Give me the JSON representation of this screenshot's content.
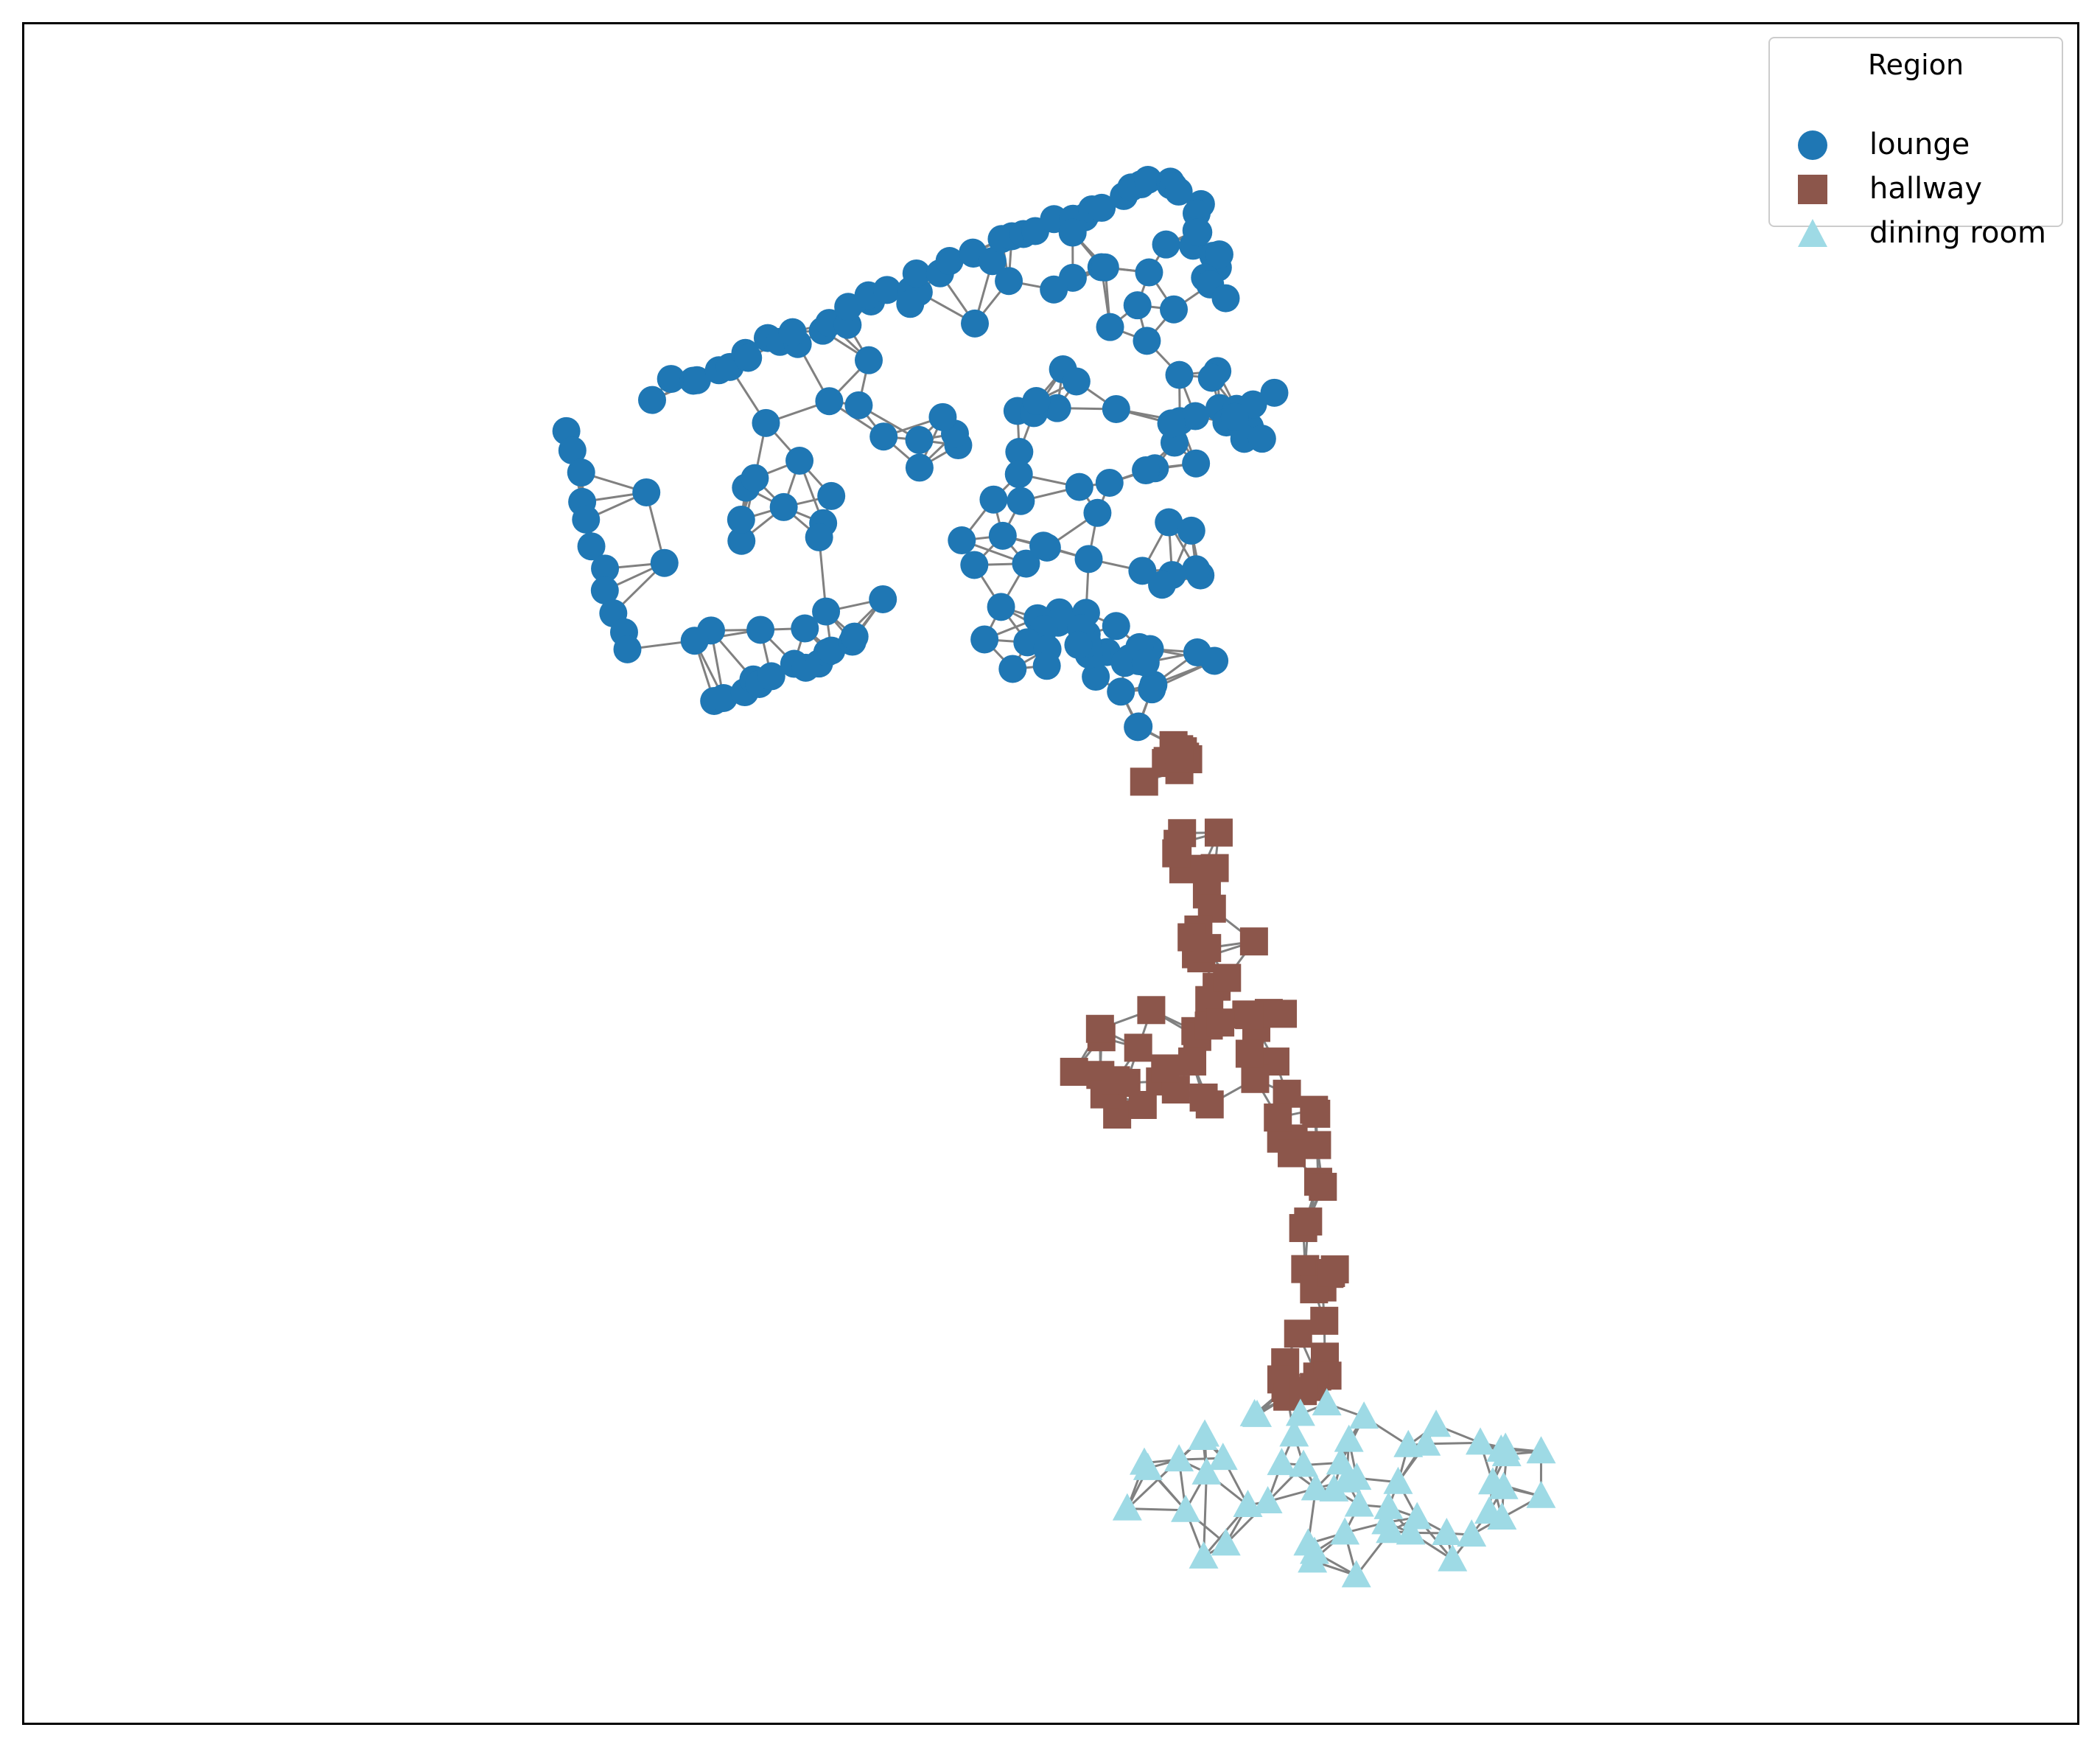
{
  "legend": {
    "title": "Region",
    "items": [
      {
        "label": "lounge",
        "color": "#1f77b4",
        "marker": "circle"
      },
      {
        "label": "hallway",
        "color": "#8c564b",
        "marker": "square"
      },
      {
        "label": "dining room",
        "color": "#9edae5",
        "marker": "triangle"
      }
    ]
  },
  "style": {
    "edge_color": "#808080",
    "frame_color": "#000000"
  }
}
